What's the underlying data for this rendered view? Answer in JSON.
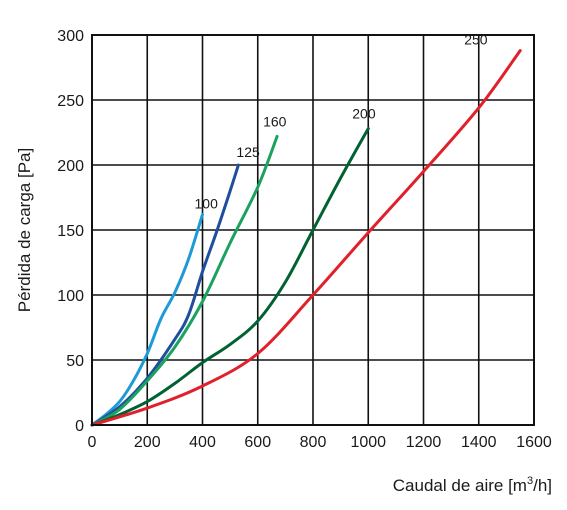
{
  "chart_data": {
    "type": "line",
    "xlabel": "Caudal de aire [m3/h]",
    "xlabel_parts": {
      "main": "Caudal de aire [m",
      "sup": "3",
      "tail": "/h]"
    },
    "ylabel": "Pérdida de carga  [Pa]",
    "xlim": [
      0,
      1600
    ],
    "ylim": [
      0,
      300
    ],
    "x_ticks": [
      "0",
      "200",
      "400",
      "600",
      "800",
      "1000",
      "1200",
      "1400",
      "1600"
    ],
    "y_ticks": [
      "0",
      "50",
      "100",
      "150",
      "200",
      "250",
      "300"
    ],
    "grid": true,
    "legend": "inline labels at curve ends",
    "series": [
      {
        "name": "100",
        "color": "#1e9ad8",
        "x": [
          0,
          50,
          100,
          150,
          200,
          250,
          300,
          350,
          400
        ],
        "y": [
          0,
          8,
          18,
          34,
          55,
          82,
          102,
          128,
          162
        ]
      },
      {
        "name": "125",
        "color": "#1f4e9c",
        "x": [
          0,
          100,
          200,
          300,
          350,
          400,
          450,
          500,
          530
        ],
        "y": [
          0,
          14,
          36,
          66,
          85,
          118,
          148,
          180,
          200
        ]
      },
      {
        "name": "160",
        "color": "#1ba160",
        "x": [
          0,
          100,
          200,
          300,
          400,
          500,
          600,
          670
        ],
        "y": [
          0,
          12,
          34,
          60,
          95,
          140,
          183,
          222
        ]
      },
      {
        "name": "200",
        "color": "#006232",
        "x": [
          0,
          100,
          200,
          300,
          400,
          500,
          600,
          700,
          800,
          900,
          1000
        ],
        "y": [
          0,
          8,
          18,
          32,
          48,
          62,
          80,
          110,
          150,
          190,
          228
        ]
      },
      {
        "name": "250",
        "color": "#e0202a",
        "x": [
          0,
          200,
          400,
          600,
          800,
          1000,
          1200,
          1400,
          1550
        ],
        "y": [
          0,
          13,
          30,
          55,
          100,
          148,
          195,
          244,
          288
        ]
      }
    ]
  }
}
